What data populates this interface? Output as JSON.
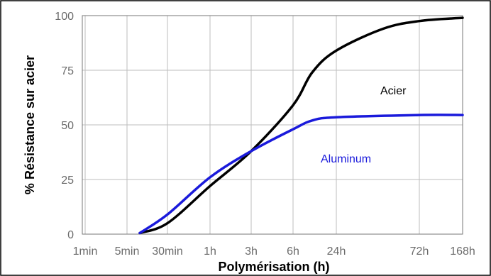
{
  "chart_data": {
    "type": "line",
    "title": "",
    "xlabel": "Polymérisation (h)",
    "ylabel": "% Résistance sur acier",
    "x_ticks": [
      "1min",
      "5min",
      "30min",
      "1h",
      "3h",
      "6h",
      "24h",
      "72h",
      "168h"
    ],
    "y_ticks": [
      0,
      25,
      50,
      75,
      100
    ],
    "ylim": [
      0,
      100
    ],
    "grid": true,
    "legend": "inline labels",
    "series": [
      {
        "name": "Acier",
        "color": "#000000",
        "points": [
          {
            "x": "15min",
            "y": 0.5
          },
          {
            "x": "30min",
            "y": 5
          },
          {
            "x": "1h",
            "y": 22
          },
          {
            "x": "3h",
            "y": 38
          },
          {
            "x": "6h",
            "y": 59
          },
          {
            "x": "12h",
            "y": 74
          },
          {
            "x": "24h",
            "y": 84
          },
          {
            "x": "48h",
            "y": 94
          },
          {
            "x": "72h",
            "y": 97.5
          },
          {
            "x": "168h",
            "y": 99
          }
        ]
      },
      {
        "name": "Aluminum",
        "color": "#1a1adb",
        "points": [
          {
            "x": "15min",
            "y": 0.5
          },
          {
            "x": "30min",
            "y": 9
          },
          {
            "x": "1h",
            "y": 26
          },
          {
            "x": "3h",
            "y": 38
          },
          {
            "x": "6h",
            "y": 48
          },
          {
            "x": "12h",
            "y": 52
          },
          {
            "x": "24h",
            "y": 53.5
          },
          {
            "x": "72h",
            "y": 54.5
          },
          {
            "x": "168h",
            "y": 54.5
          }
        ]
      }
    ]
  }
}
